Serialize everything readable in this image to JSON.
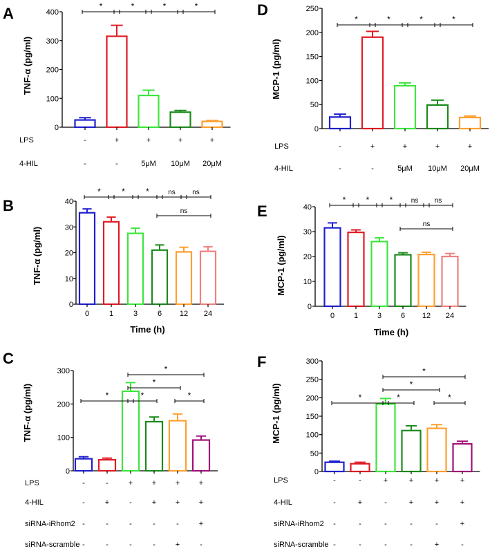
{
  "chart_data": [
    {
      "type": "bar",
      "panel": "A",
      "ylabel": "TNF-α (pg/ml)",
      "xlabel": "",
      "ylim": [
        0,
        400
      ],
      "yticks": [
        0,
        100,
        200,
        300,
        400
      ],
      "values": [
        25,
        315,
        110,
        52,
        20
      ],
      "errors": [
        8,
        38,
        18,
        6,
        3
      ],
      "colors": [
        "#1f1fd0",
        "#e01b24",
        "#3ce63c",
        "#1b8a1b",
        "#ff9f2e"
      ],
      "conditions": [
        {
          "label": "LPS",
          "values": [
            "-",
            "+",
            "+",
            "+",
            "+"
          ]
        },
        {
          "label": "4-HIL",
          "values": [
            "-",
            "-",
            "5μM",
            "10μM",
            "20μM"
          ]
        }
      ],
      "sig": [
        {
          "from": 0,
          "to": 1,
          "label": "*",
          "level": 0
        },
        {
          "from": 1,
          "to": 2,
          "label": "*",
          "level": 0
        },
        {
          "from": 2,
          "to": 3,
          "label": "*",
          "level": 0
        },
        {
          "from": 3,
          "to": 4,
          "label": "*",
          "level": 0
        }
      ]
    },
    {
      "type": "bar",
      "panel": "D",
      "ylabel": "MCP-1 (pg/ml)",
      "xlabel": "",
      "ylim": [
        0,
        250
      ],
      "yticks": [
        0,
        50,
        100,
        150,
        200,
        250
      ],
      "values": [
        24,
        190,
        89,
        49,
        23
      ],
      "errors": [
        6,
        12,
        6,
        10,
        3
      ],
      "colors": [
        "#1f1fd0",
        "#e01b24",
        "#3ce63c",
        "#1b8a1b",
        "#ff9f2e"
      ],
      "conditions": [
        {
          "label": "LPS",
          "values": [
            "-",
            "+",
            "+",
            "+",
            "+"
          ]
        },
        {
          "label": "4-HIL",
          "values": [
            "-",
            "-",
            "5μM",
            "10μM",
            "20μM"
          ]
        }
      ],
      "sig": [
        {
          "from": 0,
          "to": 1,
          "label": "*",
          "level": 0
        },
        {
          "from": 1,
          "to": 2,
          "label": "*",
          "level": 0
        },
        {
          "from": 2,
          "to": 3,
          "label": "*",
          "level": 0
        },
        {
          "from": 3,
          "to": 4,
          "label": "*",
          "level": 0
        }
      ]
    },
    {
      "type": "bar",
      "panel": "B",
      "ylabel": "TNF-α (pg/ml)",
      "xlabel": "Time (h)",
      "ylim": [
        0,
        40
      ],
      "yticks": [
        0,
        10,
        20,
        30,
        40
      ],
      "categories": [
        "0",
        "1",
        "3",
        "6",
        "12",
        "24"
      ],
      "values": [
        35.5,
        32,
        27.5,
        21,
        20.3,
        20.5
      ],
      "errors": [
        1.5,
        1.8,
        2.0,
        2.0,
        1.8,
        1.8
      ],
      "colors": [
        "#1f1fd0",
        "#e01b24",
        "#3ce63c",
        "#1b8a1b",
        "#ff9f2e",
        "#f08080"
      ],
      "conditions": [],
      "sig": [
        {
          "from": 0,
          "to": 1,
          "label": "*",
          "level": 1
        },
        {
          "from": 1,
          "to": 2,
          "label": "*",
          "level": 1
        },
        {
          "from": 2,
          "to": 3,
          "label": "*",
          "level": 1
        },
        {
          "from": 3,
          "to": 4,
          "label": "ns",
          "level": 1
        },
        {
          "from": 4,
          "to": 5,
          "label": "ns",
          "level": 1
        },
        {
          "from": 3,
          "to": 5,
          "label": "ns",
          "level": 0
        }
      ]
    },
    {
      "type": "bar",
      "panel": "E",
      "ylabel": "MCP-1 (pg/ml)",
      "xlabel": "Time (h)",
      "ylim": [
        0,
        40
      ],
      "yticks": [
        0,
        10,
        20,
        30,
        40
      ],
      "categories": [
        "0",
        "1",
        "3",
        "6",
        "12",
        "24"
      ],
      "values": [
        31.5,
        29.7,
        26,
        20.7,
        20.8,
        20
      ],
      "errors": [
        2.0,
        1.0,
        1.5,
        0.8,
        0.9,
        1.2
      ],
      "colors": [
        "#1f1fd0",
        "#e01b24",
        "#3ce63c",
        "#1b8a1b",
        "#ff9f2e",
        "#f08080"
      ],
      "conditions": [],
      "sig": [
        {
          "from": 0,
          "to": 1,
          "label": "*",
          "level": 1
        },
        {
          "from": 1,
          "to": 2,
          "label": "*",
          "level": 1
        },
        {
          "from": 2,
          "to": 3,
          "label": "*",
          "level": 1
        },
        {
          "from": 3,
          "to": 4,
          "label": "ns",
          "level": 1
        },
        {
          "from": 4,
          "to": 5,
          "label": "ns",
          "level": 1
        },
        {
          "from": 3,
          "to": 5,
          "label": "ns",
          "level": 0
        }
      ]
    },
    {
      "type": "bar",
      "panel": "C",
      "ylabel": "TNF-α (pg/ml)",
      "xlabel": "",
      "ylim": [
        0,
        300
      ],
      "yticks": [
        0,
        100,
        200,
        300
      ],
      "values": [
        36,
        33,
        238,
        147,
        150,
        92
      ],
      "errors": [
        6,
        5,
        26,
        14,
        20,
        12
      ],
      "colors": [
        "#1f1fd0",
        "#e01b24",
        "#3ce63c",
        "#1b8a1b",
        "#ff9f2e",
        "#a0107a"
      ],
      "conditions": [
        {
          "label": "LPS",
          "values": [
            "-",
            "-",
            "+",
            "+",
            "+",
            "+"
          ]
        },
        {
          "label": "4-HIL",
          "values": [
            "-",
            "+",
            "-",
            "+",
            "+",
            "+"
          ]
        },
        {
          "label": "siRNA-iRhom2",
          "values": [
            "-",
            "-",
            "-",
            "-",
            "-",
            "+"
          ]
        },
        {
          "label": "siRNA-scramble",
          "values": [
            "-",
            "-",
            "-",
            "-",
            "+",
            "-"
          ]
        }
      ],
      "sig": [
        {
          "from": 0,
          "to": 2,
          "label": "*",
          "level": 0
        },
        {
          "from": 2,
          "to": 3,
          "label": "*",
          "level": 0
        },
        {
          "from": 4,
          "to": 5,
          "label": "*",
          "level": 0
        },
        {
          "from": 2,
          "to": 4,
          "label": "*",
          "level": 1
        },
        {
          "from": 2,
          "to": 5,
          "label": "*",
          "level": 2
        }
      ]
    },
    {
      "type": "bar",
      "panel": "F",
      "ylabel": "MCP-1 (pg/ml)",
      "xlabel": "",
      "ylim": [
        0,
        300
      ],
      "yticks": [
        0,
        50,
        100,
        150,
        200,
        250,
        300
      ],
      "values": [
        25,
        21,
        183,
        111,
        117,
        75
      ],
      "errors": [
        3,
        4,
        15,
        13,
        10,
        7
      ],
      "colors": [
        "#1f1fd0",
        "#e01b24",
        "#3ce63c",
        "#1b8a1b",
        "#ff9f2e",
        "#a0107a"
      ],
      "conditions": [
        {
          "label": "LPS",
          "values": [
            "-",
            "-",
            "+",
            "+",
            "+",
            "+"
          ]
        },
        {
          "label": "4-HIL",
          "values": [
            "-",
            "+",
            "-",
            "+",
            "+",
            "+"
          ]
        },
        {
          "label": "siRNA-iRhom2",
          "values": [
            "-",
            "-",
            "-",
            "-",
            "-",
            "+"
          ]
        },
        {
          "label": "siRNA-scramble",
          "values": [
            "-",
            "-",
            "-",
            "-",
            "+",
            "-"
          ]
        }
      ],
      "sig": [
        {
          "from": 0,
          "to": 2,
          "label": "*",
          "level": 0
        },
        {
          "from": 2,
          "to": 3,
          "label": "*",
          "level": 0
        },
        {
          "from": 4,
          "to": 5,
          "label": "*",
          "level": 0
        },
        {
          "from": 2,
          "to": 4,
          "label": "*",
          "level": 1
        },
        {
          "from": 2,
          "to": 5,
          "label": "*",
          "level": 2
        }
      ]
    }
  ]
}
